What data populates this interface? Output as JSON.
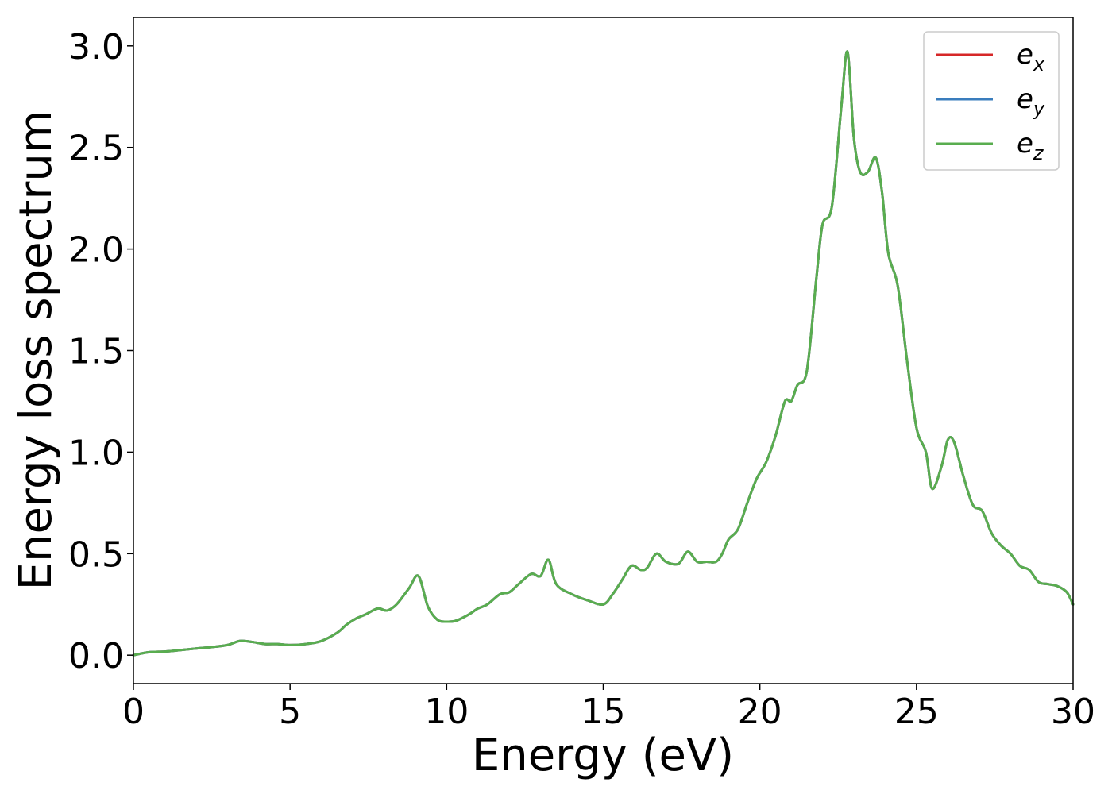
{
  "chart_data": {
    "type": "line",
    "title": "",
    "xlabel": "Energy (eV)",
    "ylabel": "Energy loss spectrum",
    "xlim": [
      0,
      30
    ],
    "ylim": [
      -0.14,
      3.14
    ],
    "xticks": [
      0,
      5,
      10,
      15,
      20,
      25,
      30
    ],
    "xtick_labels": [
      "0",
      "5",
      "10",
      "15",
      "20",
      "25",
      "30"
    ],
    "yticks": [
      0.0,
      0.5,
      1.0,
      1.5,
      2.0,
      2.5,
      3.0
    ],
    "ytick_labels": [
      "0.0",
      "0.5",
      "1.0",
      "1.5",
      "2.0",
      "2.5",
      "3.0"
    ],
    "grid": false,
    "legend_position": "top-right",
    "x": [
      0,
      0.5,
      1,
      1.5,
      2,
      2.5,
      3,
      3.4,
      3.8,
      4.2,
      4.6,
      5,
      5.5,
      6,
      6.5,
      6.8,
      7.1,
      7.4,
      7.8,
      8.1,
      8.4,
      8.8,
      9.1,
      9.4,
      9.7,
      10,
      10.3,
      10.7,
      11,
      11.3,
      11.7,
      12,
      12.3,
      12.7,
      13,
      13.25,
      13.5,
      14,
      14.5,
      15,
      15.3,
      15.6,
      15.9,
      16.2,
      16.4,
      16.7,
      17,
      17.4,
      17.7,
      18,
      18.3,
      18.6,
      18.8,
      19,
      19.3,
      19.6,
      19.9,
      20.2,
      20.5,
      20.8,
      21,
      21.2,
      21.5,
      21.8,
      22,
      22.3,
      22.6,
      22.8,
      23,
      23.2,
      23.45,
      23.7,
      23.9,
      24.1,
      24.4,
      24.7,
      25,
      25.3,
      25.5,
      25.8,
      26,
      26.2,
      26.5,
      26.8,
      27.1,
      27.4,
      27.7,
      28,
      28.3,
      28.6,
      28.9,
      29.2,
      29.5,
      29.8,
      30
    ],
    "series": [
      {
        "name": "e_x",
        "color": "#d62728",
        "values": [
          0.0,
          0.015,
          0.018,
          0.025,
          0.033,
          0.04,
          0.05,
          0.07,
          0.065,
          0.055,
          0.055,
          0.05,
          0.055,
          0.07,
          0.11,
          0.15,
          0.18,
          0.2,
          0.23,
          0.22,
          0.25,
          0.33,
          0.39,
          0.24,
          0.175,
          0.165,
          0.17,
          0.2,
          0.23,
          0.25,
          0.3,
          0.31,
          0.35,
          0.4,
          0.39,
          0.47,
          0.35,
          0.3,
          0.27,
          0.25,
          0.3,
          0.37,
          0.44,
          0.42,
          0.43,
          0.5,
          0.46,
          0.45,
          0.51,
          0.46,
          0.46,
          0.46,
          0.5,
          0.57,
          0.62,
          0.75,
          0.87,
          0.95,
          1.08,
          1.25,
          1.25,
          1.33,
          1.4,
          1.85,
          2.12,
          2.21,
          2.7,
          2.97,
          2.55,
          2.38,
          2.38,
          2.45,
          2.28,
          1.98,
          1.82,
          1.45,
          1.12,
          1.0,
          0.82,
          0.93,
          1.06,
          1.05,
          0.88,
          0.74,
          0.71,
          0.6,
          0.54,
          0.5,
          0.44,
          0.42,
          0.36,
          0.35,
          0.34,
          0.31,
          0.25
        ]
      },
      {
        "name": "e_y",
        "color": "#3a7dbd",
        "values": [
          0.0,
          0.015,
          0.018,
          0.025,
          0.033,
          0.04,
          0.05,
          0.07,
          0.065,
          0.055,
          0.055,
          0.05,
          0.055,
          0.07,
          0.11,
          0.15,
          0.18,
          0.2,
          0.23,
          0.22,
          0.25,
          0.33,
          0.39,
          0.24,
          0.175,
          0.165,
          0.17,
          0.2,
          0.23,
          0.25,
          0.3,
          0.31,
          0.35,
          0.4,
          0.39,
          0.47,
          0.35,
          0.3,
          0.27,
          0.25,
          0.3,
          0.37,
          0.44,
          0.42,
          0.43,
          0.5,
          0.46,
          0.45,
          0.51,
          0.46,
          0.46,
          0.46,
          0.5,
          0.57,
          0.62,
          0.75,
          0.87,
          0.95,
          1.08,
          1.25,
          1.25,
          1.33,
          1.4,
          1.85,
          2.12,
          2.21,
          2.7,
          2.97,
          2.55,
          2.38,
          2.38,
          2.45,
          2.28,
          1.98,
          1.82,
          1.45,
          1.12,
          1.0,
          0.82,
          0.93,
          1.06,
          1.05,
          0.88,
          0.74,
          0.71,
          0.6,
          0.54,
          0.5,
          0.44,
          0.42,
          0.36,
          0.35,
          0.34,
          0.31,
          0.25
        ]
      },
      {
        "name": "e_z",
        "color": "#59ad4f",
        "values": [
          0.0,
          0.015,
          0.018,
          0.025,
          0.033,
          0.04,
          0.05,
          0.07,
          0.065,
          0.055,
          0.055,
          0.05,
          0.055,
          0.07,
          0.11,
          0.15,
          0.18,
          0.2,
          0.23,
          0.22,
          0.25,
          0.33,
          0.39,
          0.24,
          0.175,
          0.165,
          0.17,
          0.2,
          0.23,
          0.25,
          0.3,
          0.31,
          0.35,
          0.4,
          0.39,
          0.47,
          0.35,
          0.3,
          0.27,
          0.25,
          0.3,
          0.37,
          0.44,
          0.42,
          0.43,
          0.5,
          0.46,
          0.45,
          0.51,
          0.46,
          0.46,
          0.46,
          0.5,
          0.57,
          0.62,
          0.75,
          0.87,
          0.95,
          1.08,
          1.25,
          1.25,
          1.33,
          1.4,
          1.85,
          2.12,
          2.21,
          2.7,
          2.97,
          2.55,
          2.38,
          2.38,
          2.45,
          2.28,
          1.98,
          1.82,
          1.45,
          1.12,
          1.0,
          0.82,
          0.93,
          1.06,
          1.05,
          0.88,
          0.74,
          0.71,
          0.6,
          0.54,
          0.5,
          0.44,
          0.42,
          0.36,
          0.35,
          0.34,
          0.31,
          0.25
        ]
      }
    ],
    "legend": [
      {
        "base": "e",
        "sub": "x",
        "color": "#d62728"
      },
      {
        "base": "e",
        "sub": "y",
        "color": "#3a7dbd"
      },
      {
        "base": "e",
        "sub": "z",
        "color": "#59ad4f"
      }
    ]
  }
}
